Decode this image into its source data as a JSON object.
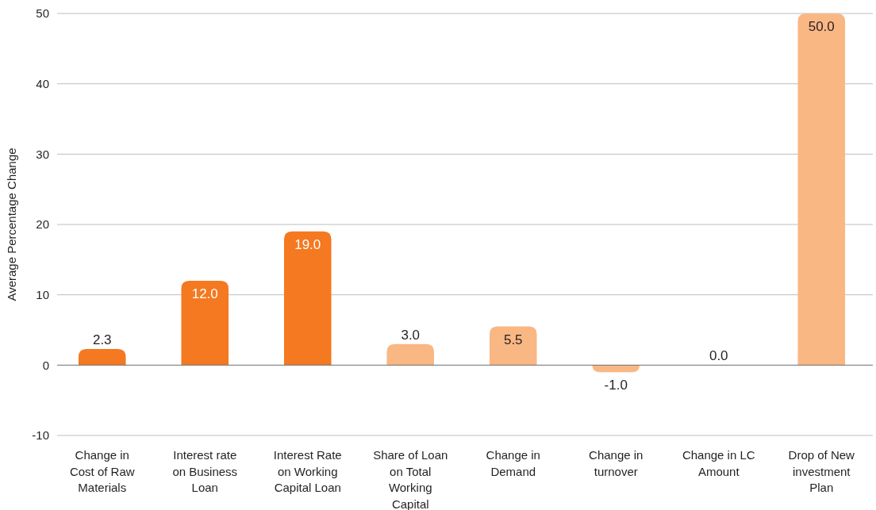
{
  "chart_data": {
    "type": "bar",
    "ylabel": "Average Percentage Change",
    "categories": [
      "Change in Cost of Raw Materials",
      "Interest rate on Business Loan",
      "Interest Rate on Working Capital Loan",
      "Share of Loan on Total Working Capital",
      "Change in Demand",
      "Change in turnover",
      "Change in LC Amount",
      "Drop of New investment Plan"
    ],
    "values": [
      2.3,
      12.0,
      19.0,
      3.0,
      5.5,
      -1.0,
      0.0,
      50.0
    ],
    "value_labels": [
      "2.3",
      "12.0",
      "19.0",
      "3.0",
      "5.5",
      "-1.0",
      "0.0",
      "50.0"
    ],
    "colors": [
      "#f47920",
      "#f47920",
      "#f47920",
      "#f9b784",
      "#f9b784",
      "#f9b784",
      "#f9b784",
      "#f9b784"
    ],
    "ylim": [
      -10,
      50
    ],
    "yticks": [
      -10,
      0,
      10,
      20,
      30,
      40,
      50
    ],
    "grid": "y"
  }
}
